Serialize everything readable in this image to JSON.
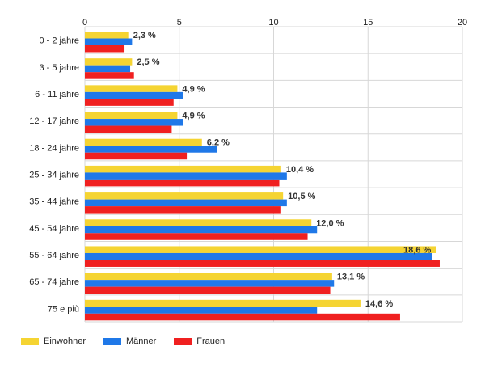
{
  "chart_data": {
    "type": "bar",
    "orientation": "horizontal",
    "categories": [
      "0 - 2 jahre",
      "3 - 5 jahre",
      "6 - 11 jahre",
      "12 - 17 jahre",
      "18 - 24 jahre",
      "25 - 34 jahre",
      "35 - 44 jahre",
      "45 - 54 jahre",
      "55 - 64 jahre",
      "65 - 74 jahre",
      "75 e più"
    ],
    "series": [
      {
        "name": "Einwohner",
        "color": "#f5d432",
        "values": [
          2.3,
          2.5,
          4.9,
          4.9,
          6.2,
          10.4,
          10.5,
          12.0,
          18.6,
          13.1,
          14.6
        ]
      },
      {
        "name": "Männer",
        "color": "#1f78e8",
        "values": [
          2.5,
          2.4,
          5.2,
          5.2,
          7.0,
          10.7,
          10.7,
          12.3,
          18.4,
          13.2,
          12.3
        ]
      },
      {
        "name": "Frauen",
        "color": "#f02020",
        "values": [
          2.1,
          2.6,
          4.7,
          4.6,
          5.4,
          10.3,
          10.4,
          11.8,
          18.8,
          13.0,
          16.7
        ]
      }
    ],
    "data_labels": [
      "2,3 %",
      "2,5 %",
      "4,9 %",
      "4,9 %",
      "6,2 %",
      "10,4 %",
      "10,5 %",
      "12,0 %",
      "18,6 %",
      "13,1 %",
      "14,6 %"
    ],
    "x_ticks": [
      "0",
      "5",
      "10",
      "15",
      "20"
    ],
    "xlim": [
      0,
      20
    ],
    "grid": true,
    "legend_position": "bottom-left"
  }
}
